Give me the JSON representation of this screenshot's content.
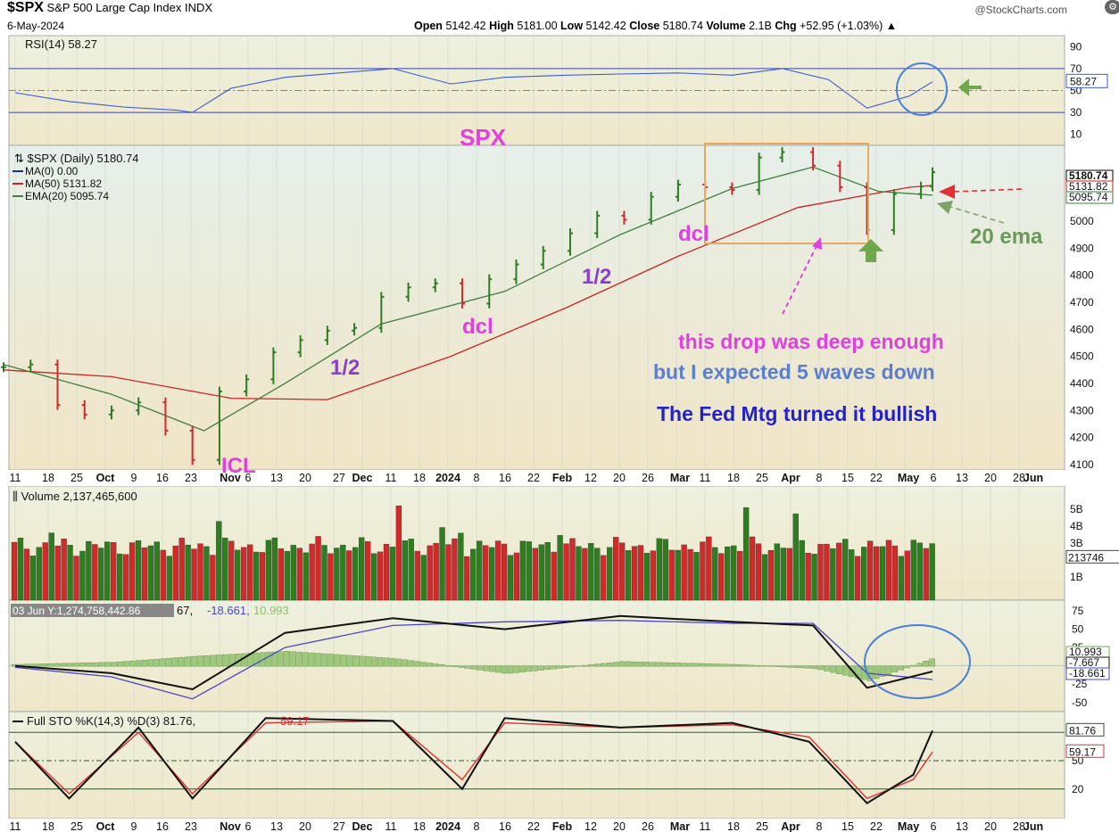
{
  "header": {
    "symbol": "$SPX",
    "name": "S&P 500 Large Cap Index",
    "exchange": "INDX",
    "date": "6-May-2024",
    "watermark": "@StockCharts.com",
    "open_label": "Open",
    "open": "5142.42",
    "high_label": "High",
    "high": "5181.00",
    "low_label": "Low",
    "low": "5142.42",
    "close_label": "Close",
    "close": "5180.74",
    "volume_label": "Volume",
    "volume": "2.1B",
    "chg_label": "Chg",
    "chg": "+52.95 (+1.03%)"
  },
  "colors": {
    "panel_bg": "#e9eedb",
    "price_bg": "#eceedd",
    "up": "#2f7d21",
    "down": "#d02a2a",
    "ma50": "#cc2222",
    "ema20": "#3d7f3d",
    "rsi_line": "#3b5bd6",
    "annotation_pink": "#e040e0",
    "annotation_purple": "#8a3ec9",
    "annotation_blue": "#5b7fd0",
    "annotation_navy": "#2222cc",
    "box": "#e8a860",
    "arrow_green": "#6fa84a",
    "circle_blue": "#4a80d8"
  },
  "chart_data": [
    {
      "type": "line",
      "title": "RSI(14) 58.27",
      "yticks": [
        90,
        70,
        50,
        30,
        10
      ],
      "ylim": [
        0,
        100
      ],
      "reference_lines": [
        70,
        50,
        30
      ],
      "last_value_label": "58.27",
      "x": [
        "2023-09-11",
        "2023-09-25",
        "2023-10-09",
        "2023-10-23",
        "2023-10-27",
        "2023-11-06",
        "2023-11-20",
        "2023-12-04",
        "2023-12-18",
        "2024-01-02",
        "2024-01-16",
        "2024-02-01",
        "2024-02-15",
        "2024-03-01",
        "2024-03-15",
        "2024-03-28",
        "2024-04-09",
        "2024-04-19",
        "2024-04-30",
        "2024-05-06"
      ],
      "values": [
        48,
        40,
        35,
        32,
        30,
        52,
        62,
        66,
        70,
        56,
        62,
        64,
        65,
        66,
        64,
        70,
        60,
        34,
        45,
        58
      ]
    },
    {
      "type": "candlestick",
      "title": "$SPX (Daily) 5180.74",
      "legend": [
        "MA(0) 0.00",
        "MA(50) 5131.82",
        "EMA(20) 5095.74"
      ],
      "ylim": [
        4080,
        5280
      ],
      "yticks": [
        5000,
        4900,
        4800,
        4700,
        4600,
        4500,
        4400,
        4300,
        4200,
        4100
      ],
      "last_value_labels": [
        "5180.74",
        "5131.82",
        "5095.74"
      ],
      "series": [
        {
          "name": "$SPX",
          "x": [
            "2023-09-08",
            "2023-09-15",
            "2023-09-22",
            "2023-09-29",
            "2023-10-06",
            "2023-10-13",
            "2023-10-20",
            "2023-10-27",
            "2023-11-03",
            "2023-11-10",
            "2023-11-17",
            "2023-11-24",
            "2023-12-01",
            "2023-12-08",
            "2023-12-15",
            "2023-12-22",
            "2023-12-29",
            "2024-01-05",
            "2024-01-12",
            "2024-01-19",
            "2024-01-26",
            "2024-02-02",
            "2024-02-09",
            "2024-02-16",
            "2024-02-23",
            "2024-03-01",
            "2024-03-08",
            "2024-03-15",
            "2024-03-22",
            "2024-03-28",
            "2024-04-05",
            "2024-04-12",
            "2024-04-19",
            "2024-04-26",
            "2024-05-03",
            "2024-05-06"
          ],
          "values": [
            4460,
            4470,
            4320,
            4285,
            4300,
            4330,
            4225,
            4117,
            4370,
            4415,
            4515,
            4560,
            4595,
            4605,
            4720,
            4755,
            4770,
            4695,
            4785,
            4840,
            4890,
            4955,
            5020,
            5005,
            5090,
            5135,
            5125,
            5115,
            5235,
            5255,
            5205,
            5125,
            4967,
            5100,
            5128,
            5180.74
          ]
        },
        {
          "name": "MA(50)",
          "x": [
            "2023-09-08",
            "2023-10-06",
            "2023-11-06",
            "2023-12-01",
            "2024-01-02",
            "2024-02-01",
            "2024-03-01",
            "2024-04-01",
            "2024-04-30",
            "2024-05-06"
          ],
          "values": [
            4450,
            4425,
            4345,
            4340,
            4500,
            4680,
            4870,
            5050,
            5125,
            5131.82
          ]
        },
        {
          "name": "EMA(20)",
          "x": [
            "2023-09-08",
            "2023-10-06",
            "2023-10-30",
            "2023-11-20",
            "2023-12-15",
            "2024-01-16",
            "2024-02-15",
            "2024-03-15",
            "2024-04-05",
            "2024-04-22",
            "2024-05-06"
          ],
          "values": [
            4470,
            4360,
            4225,
            4400,
            4620,
            4740,
            4950,
            5120,
            5200,
            5110,
            5095.74
          ]
        }
      ]
    },
    {
      "type": "bar",
      "title": "Volume 2,137,465,600",
      "yticks": [
        "5B",
        "4B",
        "3B",
        "1B"
      ],
      "last_value_label": "213746",
      "x": [
        "2023-09-22",
        "2023-10-31",
        "2023-11-24",
        "2023-12-15",
        "2024-01-02",
        "2024-02-09",
        "2024-03-15",
        "2024-04-19",
        "2024-05-06"
      ],
      "values": [
        3.6,
        4.0,
        2.7,
        5.2,
        3.2,
        3.0,
        5.1,
        3.4,
        2.14
      ]
    },
    {
      "type": "line",
      "title": "03 Jun Y:1,274,758,442.86",
      "legend_suffix": "67, -18.661, 10.993",
      "yticks": [
        75,
        50,
        25,
        0,
        -25,
        -50
      ],
      "last_value_labels": [
        "10.993",
        "-7.667",
        "-18.661"
      ],
      "x": [
        "2023-09-11",
        "2023-10-06",
        "2023-10-27",
        "2023-11-20",
        "2023-12-18",
        "2024-01-16",
        "2024-02-15",
        "2024-03-15",
        "2024-04-05",
        "2024-04-19",
        "2024-05-06"
      ],
      "series": [
        {
          "name": "MACD",
          "values": [
            0,
            -10,
            -32,
            45,
            65,
            50,
            68,
            60,
            55,
            -30,
            -7.667
          ]
        },
        {
          "name": "Signal",
          "values": [
            -2,
            -15,
            -45,
            25,
            55,
            60,
            62,
            58,
            58,
            -10,
            -18.661
          ]
        },
        {
          "name": "Histogram",
          "values": [
            2,
            5,
            13,
            20,
            10,
            -10,
            6,
            2,
            -3,
            -20,
            10.993
          ]
        }
      ]
    },
    {
      "type": "line",
      "title": "Full STO %K(14,3) %D(3) 81.76, 59.17",
      "yticks": [
        80,
        50,
        20
      ],
      "reference_lines": [
        80,
        50,
        20
      ],
      "last_value_labels": [
        "81.76",
        "59.17"
      ],
      "x": [
        "2023-09-11",
        "2023-09-25",
        "2023-10-13",
        "2023-10-27",
        "2023-11-15",
        "2023-12-18",
        "2024-01-05",
        "2024-01-16",
        "2024-02-15",
        "2024-03-15",
        "2024-04-04",
        "2024-04-19",
        "2024-05-01",
        "2024-05-06"
      ],
      "series": [
        {
          "name": "%K",
          "values": [
            70,
            10,
            85,
            10,
            95,
            92,
            20,
            95,
            85,
            90,
            70,
            5,
            35,
            81.76
          ]
        },
        {
          "name": "%D",
          "values": [
            70,
            15,
            80,
            15,
            90,
            92,
            30,
            90,
            85,
            88,
            75,
            10,
            30,
            59.17
          ]
        }
      ]
    }
  ],
  "x_axis": {
    "labels": [
      "11",
      "18",
      "25",
      "Oct",
      "9",
      "16",
      "23",
      "Nov",
      "6",
      "13",
      "20",
      "27",
      "Dec",
      "11",
      "18",
      "2024",
      "8",
      "16",
      "22",
      "Feb",
      "12",
      "20",
      "26",
      "Mar",
      "11",
      "18",
      "25",
      "Apr",
      "8",
      "15",
      "22",
      "May",
      "6",
      "13",
      "20",
      "28",
      "Jun"
    ]
  },
  "annotations": {
    "spx": "SPX",
    "dcl1": "dcl",
    "dcl2": "dcl",
    "half1": "1/2",
    "half2": "1/2",
    "icl": "ICL",
    "note1": "this drop was deep enough",
    "note2": "but I expected 5 waves down",
    "note3": "The Fed Mtg turned it bullish",
    "ema_label": "20 ema"
  }
}
